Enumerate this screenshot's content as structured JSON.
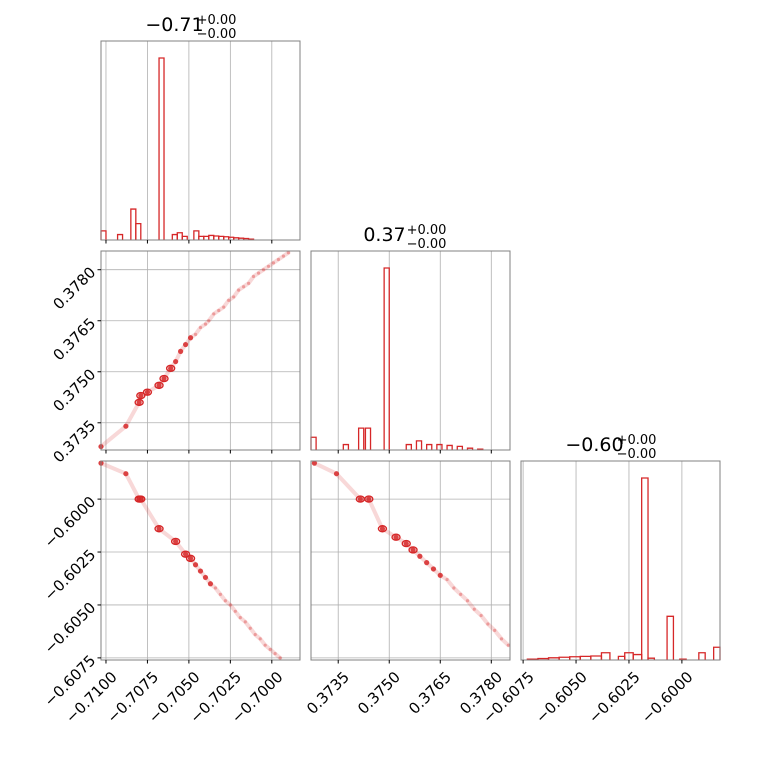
{
  "chart_data": {
    "type": "corner",
    "color": "#d62728",
    "grid": true,
    "parameters": [
      {
        "range": [
          -0.7103,
          -0.6983
        ],
        "ticks": [
          -0.71,
          -0.7075,
          -0.705,
          -0.7025,
          -0.7
        ],
        "tick_labels": [
          "−0.7100",
          "−0.7075",
          "−0.7050",
          "−0.7025",
          "−0.7000"
        ],
        "title": {
          "base": "−0.71",
          "sup": "+0.00",
          "sub": "−0.00"
        }
      },
      {
        "range": [
          0.3727,
          0.37855
        ],
        "ticks": [
          0.3735,
          0.375,
          0.3765,
          0.378
        ],
        "tick_labels": [
          "0.3735",
          "0.3750",
          "0.3765",
          "0.3780"
        ],
        "title": {
          "base": "0.37",
          "sup": "+0.00",
          "sub": "−0.00"
        }
      },
      {
        "range": [
          -0.6076,
          -0.5982
        ],
        "ticks": [
          -0.6075,
          -0.605,
          -0.6025,
          -0.6
        ],
        "tick_labels": [
          "−0.6075",
          "−0.6050",
          "−0.6025",
          "−0.6000"
        ],
        "title": {
          "base": "−0.60",
          "sup": "+0.00",
          "sub": "−0.00"
        }
      }
    ],
    "histograms": [
      {
        "param": 0,
        "bins": [
          [
            -0.7103,
            -0.71,
            0.05
          ],
          [
            -0.7093,
            -0.709,
            0.03
          ],
          [
            -0.7085,
            -0.7082,
            0.17
          ],
          [
            -0.7082,
            -0.7079,
            0.09
          ],
          [
            -0.7068,
            -0.7065,
            1.0
          ],
          [
            -0.706,
            -0.7057,
            0.03
          ],
          [
            -0.7057,
            -0.7054,
            0.04
          ],
          [
            -0.7054,
            -0.7051,
            0.02
          ],
          [
            -0.7047,
            -0.7044,
            0.05
          ],
          [
            -0.7044,
            -0.7041,
            0.02
          ],
          [
            -0.7041,
            -0.7038,
            0.02
          ],
          [
            -0.7038,
            -0.7035,
            0.025
          ],
          [
            -0.7035,
            -0.7032,
            0.022
          ],
          [
            -0.7032,
            -0.7029,
            0.02
          ],
          [
            -0.7029,
            -0.7026,
            0.018
          ],
          [
            -0.7026,
            -0.7023,
            0.015
          ],
          [
            -0.7023,
            -0.702,
            0.012
          ],
          [
            -0.702,
            -0.7017,
            0.01
          ],
          [
            -0.7017,
            -0.7014,
            0.008
          ],
          [
            -0.7014,
            -0.7011,
            0.005
          ]
        ]
      },
      {
        "param": 1,
        "bins": [
          [
            0.3727,
            0.37285,
            0.07
          ],
          [
            0.37365,
            0.3738,
            0.03
          ],
          [
            0.3741,
            0.37425,
            0.12
          ],
          [
            0.3743,
            0.37445,
            0.12
          ],
          [
            0.37485,
            0.375,
            1.0
          ],
          [
            0.3755,
            0.37565,
            0.03
          ],
          [
            0.3758,
            0.37595,
            0.05
          ],
          [
            0.3761,
            0.37625,
            0.03
          ],
          [
            0.3764,
            0.37655,
            0.03
          ],
          [
            0.3767,
            0.37685,
            0.025
          ],
          [
            0.377,
            0.37715,
            0.02
          ],
          [
            0.3773,
            0.37745,
            0.01
          ],
          [
            0.3776,
            0.37775,
            0.005
          ]
        ]
      },
      {
        "param": 2,
        "bins": [
          [
            -0.6073,
            -0.6068,
            0.005
          ],
          [
            -0.6068,
            -0.6063,
            0.008
          ],
          [
            -0.6063,
            -0.6058,
            0.012
          ],
          [
            -0.6058,
            -0.6053,
            0.015
          ],
          [
            -0.6053,
            -0.6048,
            0.018
          ],
          [
            -0.6048,
            -0.6043,
            0.02
          ],
          [
            -0.6043,
            -0.6038,
            0.022
          ],
          [
            -0.6038,
            -0.6034,
            0.04
          ],
          [
            -0.603,
            -0.6027,
            0.02
          ],
          [
            -0.6027,
            -0.6023,
            0.04
          ],
          [
            -0.6023,
            -0.6019,
            0.03
          ],
          [
            -0.6019,
            -0.6016,
            1.0
          ],
          [
            -0.6016,
            -0.6013,
            0.01
          ],
          [
            -0.6007,
            -0.6004,
            0.24
          ],
          [
            -0.6001,
            -0.5998,
            0.005
          ],
          [
            -0.5992,
            -0.5989,
            0.04
          ],
          [
            -0.5985,
            -0.5982,
            0.07
          ]
        ]
      }
    ],
    "scatter_panels": [
      {
        "x": 0,
        "y": 1,
        "points": [
          [
            -0.7103,
            0.3728
          ],
          [
            -0.7088,
            0.3734
          ],
          [
            -0.708,
            0.3741
          ],
          [
            -0.7079,
            0.3743
          ],
          [
            -0.7075,
            0.3744
          ],
          [
            -0.7068,
            0.3746
          ],
          [
            -0.7065,
            0.3748
          ],
          [
            -0.7061,
            0.3751
          ],
          [
            -0.7058,
            0.3753
          ],
          [
            -0.7055,
            0.3756
          ],
          [
            -0.7052,
            0.3758
          ],
          [
            -0.7049,
            0.376
          ],
          [
            -0.7046,
            0.3761
          ],
          [
            -0.7043,
            0.3763
          ],
          [
            -0.704,
            0.3764
          ],
          [
            -0.7038,
            0.3765
          ],
          [
            -0.7035,
            0.3767
          ],
          [
            -0.7032,
            0.3768
          ],
          [
            -0.7029,
            0.3769
          ],
          [
            -0.7026,
            0.3771
          ],
          [
            -0.7023,
            0.3772
          ],
          [
            -0.702,
            0.3774
          ],
          [
            -0.7017,
            0.3775
          ],
          [
            -0.7014,
            0.3776
          ],
          [
            -0.7011,
            0.3778
          ],
          [
            -0.7008,
            0.3779
          ],
          [
            -0.7005,
            0.378
          ],
          [
            -0.7002,
            0.3781
          ],
          [
            -0.6999,
            0.3782
          ],
          [
            -0.6996,
            0.3783
          ],
          [
            -0.6993,
            0.3784
          ],
          [
            -0.699,
            0.3785
          ]
        ]
      },
      {
        "x": 0,
        "y": 2,
        "points": [
          [
            -0.7103,
            -0.5983
          ],
          [
            -0.7088,
            -0.5988
          ],
          [
            -0.708,
            -0.6
          ],
          [
            -0.7079,
            -0.6
          ],
          [
            -0.7068,
            -0.6014
          ],
          [
            -0.7058,
            -0.602
          ],
          [
            -0.7052,
            -0.6026
          ],
          [
            -0.7049,
            -0.6028
          ],
          [
            -0.7046,
            -0.6031
          ],
          [
            -0.7043,
            -0.6034
          ],
          [
            -0.704,
            -0.6037
          ],
          [
            -0.7037,
            -0.604
          ],
          [
            -0.7034,
            -0.6042
          ],
          [
            -0.7031,
            -0.6045
          ],
          [
            -0.7028,
            -0.6048
          ],
          [
            -0.7025,
            -0.605
          ],
          [
            -0.7022,
            -0.6053
          ],
          [
            -0.7019,
            -0.6056
          ],
          [
            -0.7016,
            -0.6058
          ],
          [
            -0.7013,
            -0.6061
          ],
          [
            -0.701,
            -0.6064
          ],
          [
            -0.7007,
            -0.6066
          ],
          [
            -0.7004,
            -0.6069
          ],
          [
            -0.7001,
            -0.6071
          ],
          [
            -0.6998,
            -0.6073
          ],
          [
            -0.6995,
            -0.6075
          ]
        ]
      },
      {
        "x": 1,
        "y": 2,
        "points": [
          [
            0.3728,
            -0.5983
          ],
          [
            0.37345,
            -0.5988
          ],
          [
            0.37415,
            -0.6
          ],
          [
            0.3744,
            -0.6
          ],
          [
            0.3748,
            -0.6014
          ],
          [
            0.3752,
            -0.6018
          ],
          [
            0.3755,
            -0.6021
          ],
          [
            0.3757,
            -0.6024
          ],
          [
            0.3759,
            -0.6027
          ],
          [
            0.3761,
            -0.603
          ],
          [
            0.3763,
            -0.6033
          ],
          [
            0.3765,
            -0.6036
          ],
          [
            0.3767,
            -0.6038
          ],
          [
            0.3769,
            -0.6042
          ],
          [
            0.3771,
            -0.6045
          ],
          [
            0.3773,
            -0.6048
          ],
          [
            0.3775,
            -0.6052
          ],
          [
            0.3777,
            -0.6055
          ],
          [
            0.3779,
            -0.6059
          ],
          [
            0.3781,
            -0.6062
          ],
          [
            0.3783,
            -0.6066
          ],
          [
            0.3785,
            -0.6069
          ]
        ]
      }
    ]
  }
}
